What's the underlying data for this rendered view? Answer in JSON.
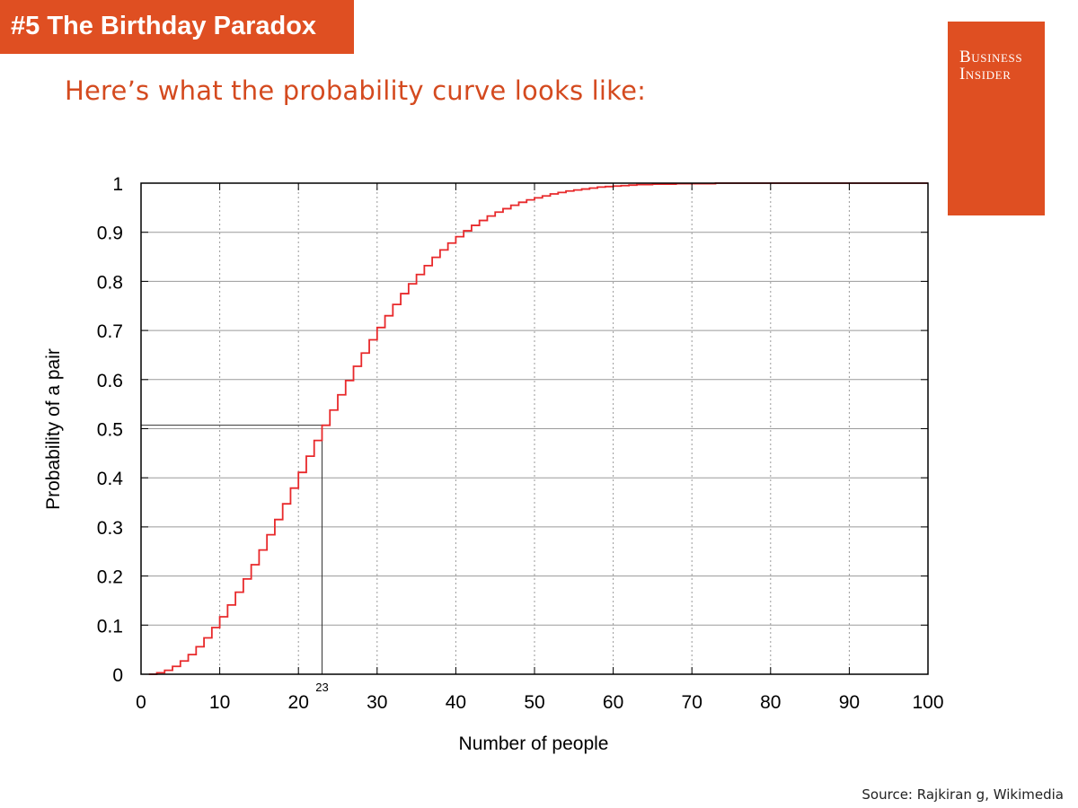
{
  "header": {
    "badge": "#5 The Birthday Paradox",
    "subtitle": "Here’s what the probability curve looks like:"
  },
  "logo": {
    "line1": "Business",
    "line2": "Insider"
  },
  "footer": {
    "source": "Source: Rajkiran g, Wikimedia"
  },
  "colors": {
    "brand": "#df4f22",
    "curve": "#e8292b",
    "grid": "#9a9a9a",
    "axis": "#000000"
  },
  "chart_data": {
    "type": "line",
    "step": true,
    "title": "",
    "xlabel": "Number of people",
    "ylabel": "Probability of a pair",
    "xlim": [
      0,
      100
    ],
    "ylim": [
      0,
      1
    ],
    "x_ticks": [
      "0",
      "10",
      "20",
      "30",
      "40",
      "50",
      "60",
      "70",
      "80",
      "90",
      "100"
    ],
    "y_ticks": [
      "0",
      "0.1",
      "0.2",
      "0.3",
      "0.4",
      "0.5",
      "0.6",
      "0.7",
      "0.8",
      "0.9",
      "1"
    ],
    "grid": true,
    "legend": "none",
    "annotation": {
      "x": 23,
      "y": 0.507,
      "label": "23"
    },
    "series": [
      {
        "x": [
          1,
          2,
          3,
          4,
          5,
          6,
          7,
          8,
          9,
          10,
          11,
          12,
          13,
          14,
          15,
          16,
          17,
          18,
          19,
          20,
          21,
          22,
          23,
          24,
          25,
          26,
          27,
          28,
          29,
          30,
          31,
          32,
          33,
          34,
          35,
          36,
          37,
          38,
          39,
          40,
          41,
          42,
          43,
          44,
          45,
          46,
          47,
          48,
          49,
          50,
          51,
          52,
          53,
          54,
          55,
          56,
          57,
          58,
          59,
          60,
          61,
          62,
          63,
          64,
          65,
          66,
          67,
          68,
          69,
          70,
          71,
          72,
          73,
          74,
          75,
          76,
          77,
          78,
          79,
          80,
          81,
          82,
          83,
          84,
          85,
          86,
          87,
          88,
          89,
          90,
          91,
          92,
          93,
          94,
          95,
          96,
          97,
          98,
          99,
          100
        ],
        "values": [
          0,
          0.003,
          0.008,
          0.016,
          0.027,
          0.04,
          0.056,
          0.074,
          0.095,
          0.117,
          0.141,
          0.167,
          0.194,
          0.223,
          0.253,
          0.284,
          0.315,
          0.347,
          0.379,
          0.411,
          0.444,
          0.476,
          0.507,
          0.538,
          0.569,
          0.598,
          0.627,
          0.654,
          0.681,
          0.706,
          0.73,
          0.753,
          0.775,
          0.795,
          0.814,
          0.832,
          0.849,
          0.864,
          0.878,
          0.891,
          0.903,
          0.914,
          0.924,
          0.933,
          0.941,
          0.948,
          0.955,
          0.961,
          0.966,
          0.97,
          0.974,
          0.978,
          0.981,
          0.984,
          0.986,
          0.988,
          0.99,
          0.992,
          0.993,
          0.994,
          0.995,
          0.996,
          0.997,
          0.997,
          0.998,
          0.998,
          0.998,
          0.999,
          0.999,
          0.999,
          0.999,
          0.999,
          1,
          1,
          1,
          1,
          1,
          1,
          1,
          1,
          1,
          1,
          1,
          1,
          1,
          1,
          1,
          1,
          1,
          1,
          1,
          1,
          1,
          1,
          1,
          1,
          1,
          1,
          1,
          1
        ]
      }
    ]
  }
}
